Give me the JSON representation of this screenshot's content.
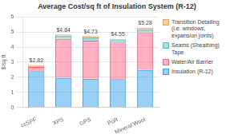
{
  "chart_data": {
    "type": "bar",
    "title": "Average Cost/sq ft of Insulation System (R-12)",
    "categories": [
      "ccSPF",
      "XPS",
      "GPS",
      "PoR",
      "Mineral Wool"
    ],
    "series": [
      {
        "name": "Insulation (R-12)",
        "values": [
          2.4,
          1.95,
          1.9,
          1.88,
          2.48
        ]
      },
      {
        "name": "Water/Air Barrier",
        "values": [
          0.28,
          2.6,
          2.52,
          2.38,
          2.5
        ]
      },
      {
        "name": "Seams (Sheathing) Tape",
        "values": [
          0.05,
          0.2,
          0.22,
          0.2,
          0.2
        ]
      },
      {
        "name": "Transition Detailing\n(i.e. windows, expansion joints)",
        "values": [
          0.09,
          0.09,
          0.09,
          0.09,
          0.1
        ]
      }
    ],
    "totals": [
      2.82,
      4.84,
      4.73,
      4.55,
      5.28
    ],
    "total_labels": [
      "$2.82",
      "$4.84",
      "$4.73",
      "$4.55",
      "$5.28"
    ],
    "ylabel": "$/sq ft",
    "ylim": [
      0,
      6
    ],
    "yticks": [
      0,
      1,
      2,
      3,
      4,
      5,
      6
    ],
    "stacked": true,
    "grid": true,
    "legend": "right"
  }
}
